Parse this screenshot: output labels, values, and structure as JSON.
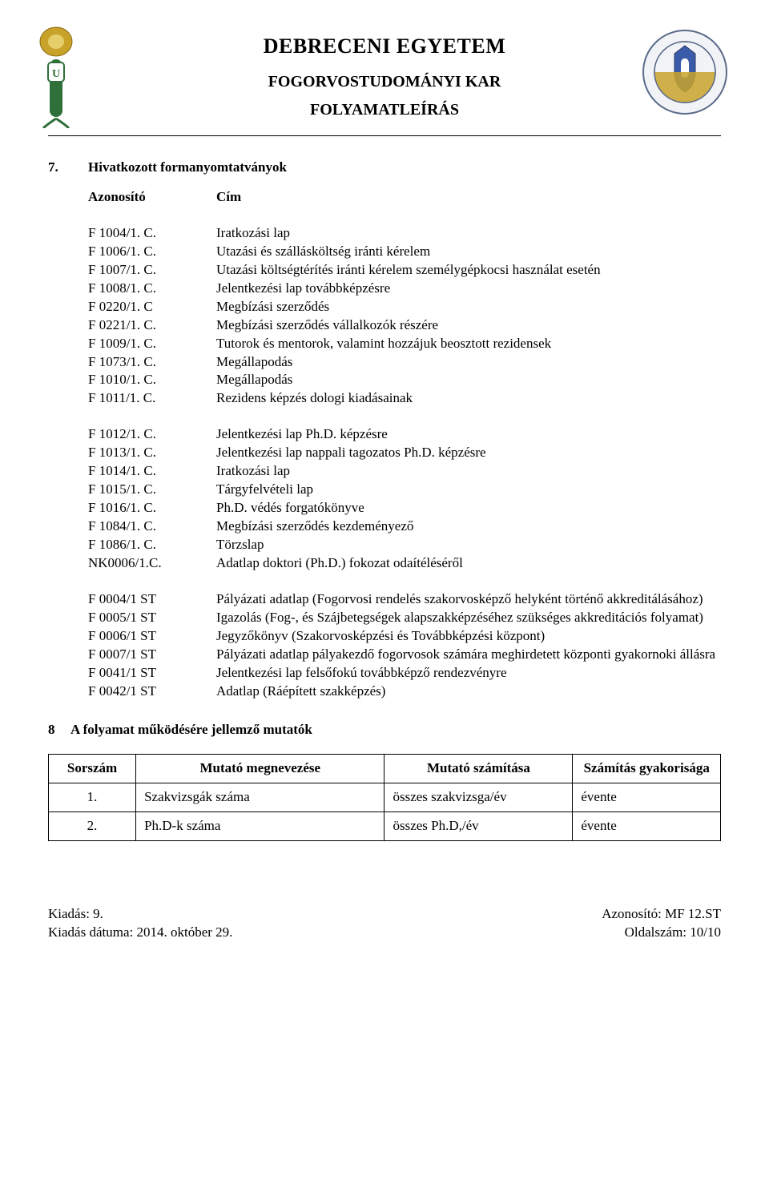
{
  "header": {
    "university": "DEBRECENI EGYETEM",
    "faculty": "FOGORVOSTUDOMÁNYI KAR",
    "doctype": "FOLYAMATLEÍRÁS",
    "left_emblem_colors": {
      "gold": "#c9a22a",
      "green": "#2f6f3a",
      "white": "#ffffff"
    },
    "right_emblem_colors": {
      "ring": "#5a6b8a",
      "gold": "#c9a22a",
      "blue": "#3a5ca8",
      "white": "#f2f3f6"
    }
  },
  "section7": {
    "num": "7.",
    "title": "Hivatkozott formanyomtatványok",
    "id_label": "Azonosító",
    "title_label": "Cím",
    "group1": [
      {
        "id": "F 1004/1. C.",
        "title": "Iratkozási lap"
      },
      {
        "id": "F 1006/1. C.",
        "title": "Utazási és szállásköltség iránti kérelem"
      },
      {
        "id": "F 1007/1. C.",
        "title": "Utazási költségtérítés iránti kérelem személygépkocsi használat esetén"
      },
      {
        "id": "F 1008/1. C.",
        "title": "Jelentkezési lap továbbképzésre"
      },
      {
        "id": "F 0220/1. C",
        "title": "Megbízási szerződés"
      },
      {
        "id": "F 0221/1. C.",
        "title": "Megbízási szerződés vállalkozók részére"
      },
      {
        "id": "F 1009/1. C.",
        "title": "Tutorok és mentorok, valamint hozzájuk beosztott rezidensek"
      },
      {
        "id": "F 1073/1. C.",
        "title": "Megállapodás"
      },
      {
        "id": "F 1010/1. C.",
        "title": "Megállapodás"
      },
      {
        "id": "F 1011/1. C.",
        "title": "Rezidens képzés dologi kiadásainak"
      }
    ],
    "group2": [
      {
        "id": "F 1012/1. C.",
        "title": "Jelentkezési lap Ph.D. képzésre"
      },
      {
        "id": "F 1013/1. C.",
        "title": "Jelentkezési lap nappali tagozatos Ph.D. képzésre"
      },
      {
        "id": "F 1014/1. C.",
        "title": "Iratkozási lap"
      },
      {
        "id": "F 1015/1. C.",
        "title": "Tárgyfelvételi lap"
      },
      {
        "id": "F 1016/1. C.",
        "title": "Ph.D. védés forgatókönyve"
      },
      {
        "id": "F 1084/1. C.",
        "title": "Megbízási szerződés kezdeményező"
      },
      {
        "id": "F 1086/1. C.",
        "title": "Törzslap"
      },
      {
        "id": "NK0006/1.C.",
        "title": "Adatlap doktori (Ph.D.) fokozat odaítéléséről"
      }
    ],
    "group3": [
      {
        "id": "F 0004/1 ST",
        "title": "Pályázati adatlap (Fogorvosi rendelés szakorvosképző helyként történő akkreditálásához)"
      },
      {
        "id": "F 0005/1 ST",
        "title": "Igazolás (Fog-, és Szájbetegségek alapszakképzéséhez szükséges akkreditációs folyamat)"
      },
      {
        "id": "F 0006/1 ST",
        "title": "Jegyzőkönyv (Szakorvosképzési és Továbbképzési központ)"
      },
      {
        "id": "F 0007/1 ST",
        "title": "Pályázati adatlap pályakezdő fogorvosok számára meghirdetett központi gyakornoki állásra"
      },
      {
        "id": "F 0041/1 ST",
        "title": "Jelentkezési lap felsőfokú továbbképző rendezvényre"
      },
      {
        "id": "F 0042/1 ST",
        "title": "Adatlap (Ráépített szakképzés)"
      }
    ]
  },
  "section8": {
    "num": "8",
    "title": "A folyamat működésére jellemző mutatók",
    "columns": [
      "Sorszám",
      "Mutató megnevezése",
      "Mutató számítása",
      "Számítás gyakorisága"
    ],
    "col_widths": [
      "13%",
      "37%",
      "28%",
      "22%"
    ],
    "rows": [
      {
        "n": "1.",
        "name": "Szakvizsgák száma",
        "calc": "összes szakvizsga/év",
        "freq": "évente"
      },
      {
        "n": "2.",
        "name": "Ph.D-k száma",
        "calc": "összes Ph.D,/év",
        "freq": "évente"
      }
    ]
  },
  "footer": {
    "left1": "Kiadás: 9.",
    "left2": "Kiadás dátuma: 2014. október 29.",
    "right1": "Azonosító: MF 12.ST",
    "right2": "Oldalszám: 10/10"
  }
}
